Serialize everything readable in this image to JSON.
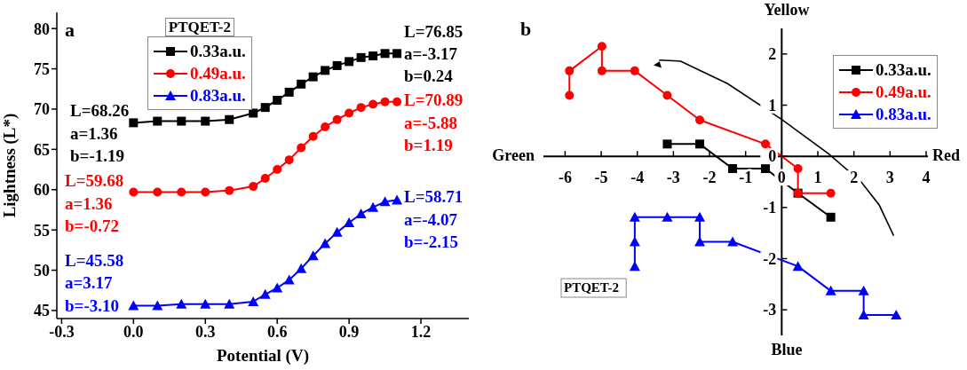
{
  "chart_data": [
    {
      "type": "line",
      "xlabel": "Potential (V)",
      "ylabel": "Lightness (L*)",
      "legend": "top",
      "legend_title": "PTQET-2",
      "line_style": "solid",
      "x": [
        0,
        0.1,
        0.2,
        0.3,
        0.4,
        0.5,
        0.55,
        0.6,
        0.65,
        0.7,
        0.75,
        0.8,
        0.85,
        0.9,
        0.95,
        1.0,
        1.05,
        1.1
      ],
      "series": [
        {
          "name": "0.33a.u.",
          "color": "#000000",
          "marker": "square",
          "values": [
            68.3,
            68.5,
            68.5,
            68.5,
            68.7,
            69.5,
            70.2,
            71.1,
            72.1,
            73.1,
            74.0,
            74.8,
            75.4,
            75.9,
            76.4,
            76.6,
            76.9,
            76.9
          ]
        },
        {
          "name": "0.49a.u.",
          "color": "#ff0000",
          "marker": "circle",
          "values": [
            59.7,
            59.7,
            59.7,
            59.7,
            59.9,
            60.4,
            61.4,
            62.5,
            63.7,
            65.2,
            66.6,
            67.8,
            68.7,
            69.5,
            70.2,
            70.6,
            70.9,
            70.9
          ]
        },
        {
          "name": "0.83a.u.",
          "color": "#0000ff",
          "marker": "triangle",
          "values": [
            45.6,
            45.6,
            45.8,
            45.8,
            45.8,
            46.1,
            47.0,
            47.8,
            48.8,
            50.2,
            51.8,
            53.3,
            54.7,
            55.9,
            57.0,
            57.8,
            58.5,
            58.7
          ]
        }
      ],
      "xlim": [
        -0.32,
        1.4
      ],
      "xticks": [
        -0.3,
        {
          "value": 0,
          "label": "0.0"
        },
        0.3,
        0.6,
        0.9,
        1.2
      ],
      "ylim": [
        44,
        82
      ],
      "yticks": [
        45,
        50,
        55,
        60,
        65,
        70,
        75,
        80
      ],
      "annotations": [
        "a",
        "L=68.26",
        "a=1.36",
        "b=-1.19",
        "L=76.85",
        "a=-3.17",
        "b=0.24",
        "L=59.68",
        "a=1.36",
        "b=-0.72",
        "L=70.89",
        "a=-5.88",
        "b=1.19",
        "L=45.58",
        "a=3.17",
        "b=-3.10",
        "L=58.71",
        "a=-4.07",
        "b=-2.15"
      ]
    },
    {
      "type": "line",
      "legend": "top right",
      "line_style": "solid",
      "series": [
        {
          "name": "0.33a.u.",
          "color": "#000000",
          "marker": "square",
          "x": [
            -3.17,
            -2.27,
            -1.36,
            -0.45,
            0.45,
            1.36
          ],
          "values": [
            0.24,
            0.24,
            -0.24,
            -0.24,
            -0.72,
            -1.19
          ]
        },
        {
          "name": "0.49a.u.",
          "color": "#ff0000",
          "marker": "circle",
          "x": [
            -5.88,
            -5.88,
            -4.98,
            -4.98,
            -4.07,
            -3.17,
            -2.27,
            -0.45,
            0.45,
            0.45,
            1.36
          ],
          "values": [
            1.19,
            1.67,
            2.15,
            1.67,
            1.67,
            1.19,
            0.71,
            0.24,
            -0.24,
            -0.72,
            -0.72
          ]
        },
        {
          "name": "0.83a.u.",
          "color": "#0000ff",
          "marker": "triangle",
          "x": [
            -4.07,
            -4.07,
            -4.07,
            -3.17,
            -2.27,
            -2.27,
            -1.36,
            0.45,
            1.36,
            2.27,
            2.27,
            3.17
          ],
          "values": [
            -2.15,
            -1.67,
            -1.19,
            -1.19,
            -1.19,
            -1.67,
            -1.67,
            -2.15,
            -2.63,
            -2.63,
            -3.1,
            -3.1
          ]
        }
      ],
      "xlim": [
        -6.6,
        4.05
      ],
      "xticks": [
        -6,
        -5,
        -4,
        -3,
        -2,
        -1,
        0,
        1,
        2,
        3,
        4
      ],
      "ylim": [
        -3.5,
        2.5
      ],
      "yticks": [
        -3,
        -2,
        -1,
        0,
        1,
        2
      ],
      "annotations": [
        "b",
        "Yellow",
        "Green",
        "Red",
        "Blue",
        "PTQET-2"
      ]
    }
  ]
}
